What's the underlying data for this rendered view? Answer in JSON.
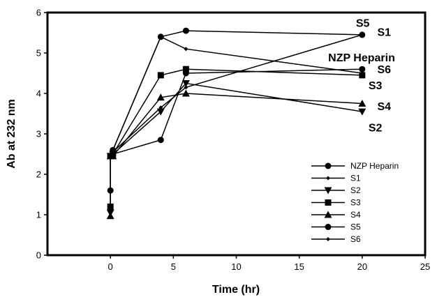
{
  "chart_data": {
    "type": "line",
    "xlabel": "Time (hr)",
    "ylabel": "Ab at 232 nm",
    "xlim": [
      -5,
      25
    ],
    "ylim": [
      0,
      6
    ],
    "xticks": [
      0,
      5,
      10,
      15,
      20,
      25
    ],
    "yticks": [
      0,
      1,
      2,
      3,
      4,
      5,
      6
    ],
    "grid": false,
    "legend_position": "bottom-right",
    "series": [
      {
        "name": "NZP Heparin",
        "marker": "circle",
        "x": [
          0,
          0,
          0.2,
          4,
          6,
          20
        ],
        "y": [
          1.6,
          2.45,
          2.5,
          2.85,
          4.5,
          4.6
        ]
      },
      {
        "name": "S1",
        "marker": "diamond",
        "x": [
          0,
          0,
          0.2,
          4,
          6,
          20
        ],
        "y": [
          1.05,
          2.45,
          2.55,
          3.65,
          4.15,
          5.45
        ]
      },
      {
        "name": "S2",
        "marker": "triangle-down",
        "x": [
          0,
          0,
          0.2,
          4,
          6,
          20
        ],
        "y": [
          1.05,
          2.45,
          2.5,
          3.55,
          4.25,
          3.55
        ]
      },
      {
        "name": "S3",
        "marker": "square",
        "x": [
          0,
          0,
          0.2,
          4,
          6,
          20
        ],
        "y": [
          1.2,
          2.45,
          2.5,
          4.45,
          4.6,
          4.45
        ]
      },
      {
        "name": "S4",
        "marker": "triangle-up",
        "x": [
          0,
          0,
          0.2,
          4,
          6,
          20
        ],
        "y": [
          0.97,
          2.45,
          2.45,
          3.9,
          4.0,
          3.75
        ]
      },
      {
        "name": "S5",
        "marker": "circle",
        "x": [
          0,
          0,
          0.2,
          4,
          6,
          20
        ],
        "y": [
          2.45,
          2.45,
          2.6,
          5.4,
          5.55,
          5.45
        ]
      },
      {
        "name": "S6",
        "marker": "diamond",
        "x": [
          0,
          0,
          0.2,
          4,
          6,
          20
        ],
        "y": [
          2.45,
          2.45,
          2.6,
          5.4,
          5.1,
          4.5
        ]
      }
    ],
    "annotations": [
      {
        "text": "S5",
        "x": 19.5,
        "y": 5.65
      },
      {
        "text": "S1",
        "x": 21.2,
        "y": 5.42
      },
      {
        "text": "NZP Heparin",
        "x": 17.3,
        "y": 4.79
      },
      {
        "text": "S6",
        "x": 21.2,
        "y": 4.5
      },
      {
        "text": "S3",
        "x": 20.5,
        "y": 4.1
      },
      {
        "text": "S4",
        "x": 21.2,
        "y": 3.59
      },
      {
        "text": "S2",
        "x": 20.5,
        "y": 3.06
      }
    ]
  }
}
